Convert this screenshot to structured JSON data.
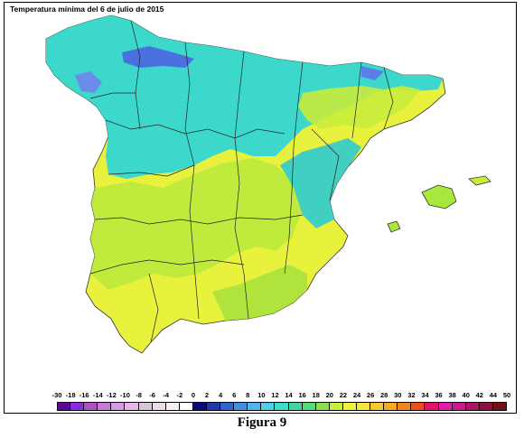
{
  "map": {
    "title": "Temperatura mínima del 6 de julio de 2015"
  },
  "legend": {
    "ticks": [
      "-30",
      "-18",
      "-16",
      "-14",
      "-12",
      "-10",
      "-8",
      "-6",
      "-4",
      "-2",
      "0",
      "2",
      "4",
      "6",
      "8",
      "10",
      "12",
      "14",
      "16",
      "18",
      "20",
      "22",
      "24",
      "26",
      "28",
      "30",
      "32",
      "34",
      "36",
      "38",
      "40",
      "42",
      "44",
      "50"
    ],
    "colors": [
      "#5c0a8e",
      "#8a2be2",
      "#b04fc8",
      "#c97ad9",
      "#d99be0",
      "#e6b8e8",
      "#d6c5d6",
      "#e8dfe8",
      "#f5f0f5",
      "#ffffff",
      "#0a0a7a",
      "#1f3aa8",
      "#2e66cc",
      "#3f8fe6",
      "#55b4f0",
      "#4fd0e8",
      "#40dcc8",
      "#3fd6a0",
      "#55dc78",
      "#8ae050",
      "#c8ee3c",
      "#eef23c",
      "#f8e43c",
      "#f8c832",
      "#f8a828",
      "#f28420",
      "#e8501c",
      "#e0146e",
      "#e01ca8",
      "#c81890",
      "#a81468",
      "#8c1040",
      "#701018"
    ]
  },
  "regions": {
    "green": "#a8e83c",
    "yellow": "#e8f23c",
    "cyan": "#3cdcd0",
    "blue": "#4a7ae8",
    "teal": "#40c8b8"
  },
  "caption": "Figura 9"
}
